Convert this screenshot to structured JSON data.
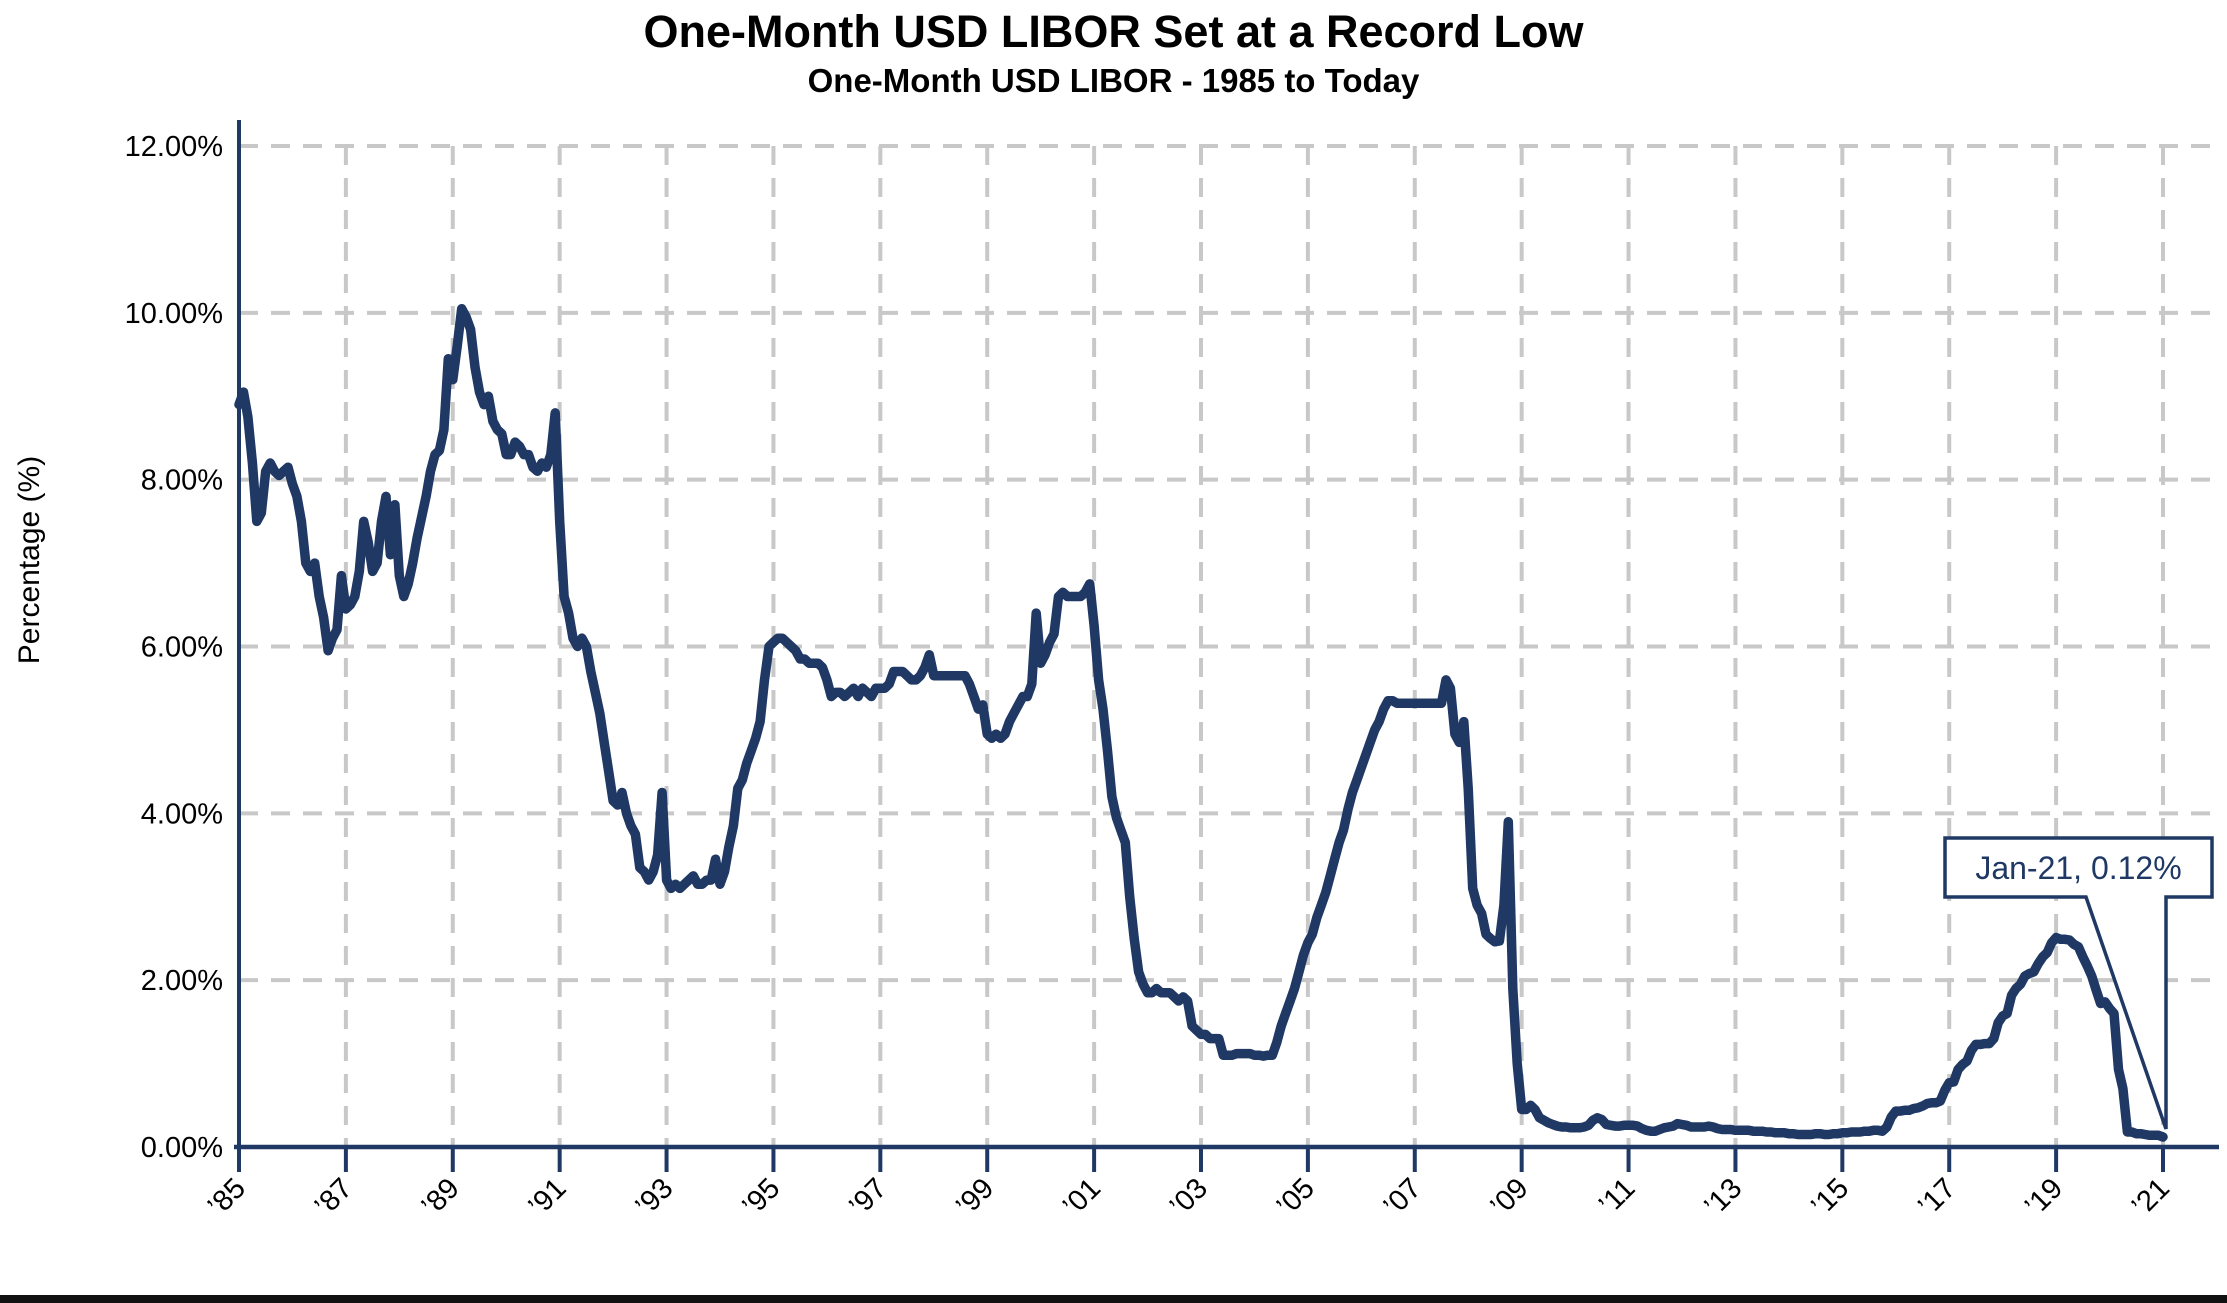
{
  "page": {
    "background": "#ffffff",
    "bottom_bar_color": "#111111"
  },
  "colors": {
    "line": "#1F3864",
    "axis": "#1F3864",
    "grid": "#C8C8C8",
    "text": "#000000",
    "annotation": "#1F3864"
  },
  "chart_data": {
    "type": "line",
    "title": "One-Month USD LIBOR Set at a Record Low",
    "subtitle": "One-Month USD LIBOR - 1985 to Today",
    "ylabel": "Percentage (%)",
    "xlabel": "",
    "ylim": [
      0,
      12
    ],
    "ytick_values": [
      0,
      2,
      4,
      6,
      8,
      10,
      12
    ],
    "ytick_labels": [
      "0.00%",
      "2.00%",
      "4.00%",
      "6.00%",
      "8.00%",
      "10.00%",
      "12.00%"
    ],
    "xtick_years": [
      1985,
      1987,
      1989,
      1991,
      1993,
      1995,
      1997,
      1999,
      2001,
      2003,
      2005,
      2007,
      2009,
      2011,
      2013,
      2015,
      2017,
      2019,
      2021
    ],
    "xtick_labels": [
      "’85",
      "’87",
      "’89",
      "’91",
      "’93",
      "’95",
      "’97",
      "’99",
      "’01",
      "’03",
      "’05",
      "’07",
      "’09",
      "’11",
      "’13",
      "’15",
      "’17",
      "’19",
      "’21"
    ],
    "grid": "dashed",
    "legend": null,
    "series": [
      {
        "name": "One-Month USD LIBOR",
        "start": "1985-01",
        "end": "2021-01",
        "frequency": "monthly",
        "unit": "percent",
        "values": [
          8.9,
          9.05,
          8.75,
          8.2,
          7.5,
          7.6,
          8.1,
          8.2,
          8.1,
          8.05,
          8.1,
          8.15,
          7.95,
          7.8,
          7.5,
          7.0,
          6.9,
          7.0,
          6.6,
          6.35,
          5.95,
          6.1,
          6.2,
          6.85,
          6.45,
          6.5,
          6.6,
          6.9,
          7.5,
          7.25,
          6.9,
          7.0,
          7.5,
          7.8,
          7.1,
          7.7,
          6.85,
          6.6,
          6.75,
          7.0,
          7.3,
          7.55,
          7.8,
          8.1,
          8.3,
          8.35,
          8.6,
          9.45,
          9.2,
          9.6,
          10.05,
          9.95,
          9.8,
          9.35,
          9.05,
          8.9,
          9.0,
          8.7,
          8.6,
          8.55,
          8.3,
          8.3,
          8.45,
          8.4,
          8.3,
          8.3,
          8.15,
          8.1,
          8.2,
          8.15,
          8.3,
          8.8,
          7.5,
          6.6,
          6.4,
          6.1,
          6.0,
          6.1,
          6.0,
          5.7,
          5.45,
          5.2,
          4.85,
          4.5,
          4.15,
          4.1,
          4.25,
          4.0,
          3.85,
          3.75,
          3.35,
          3.3,
          3.2,
          3.3,
          3.5,
          4.25,
          3.2,
          3.1,
          3.15,
          3.1,
          3.15,
          3.2,
          3.25,
          3.15,
          3.15,
          3.2,
          3.2,
          3.45,
          3.15,
          3.3,
          3.6,
          3.85,
          4.3,
          4.4,
          4.6,
          4.75,
          4.9,
          5.1,
          5.6,
          6.0,
          6.05,
          6.1,
          6.1,
          6.05,
          6.0,
          5.95,
          5.85,
          5.85,
          5.8,
          5.8,
          5.8,
          5.75,
          5.6,
          5.4,
          5.45,
          5.45,
          5.4,
          5.45,
          5.5,
          5.4,
          5.5,
          5.45,
          5.4,
          5.5,
          5.5,
          5.5,
          5.55,
          5.7,
          5.7,
          5.7,
          5.65,
          5.6,
          5.6,
          5.65,
          5.75,
          5.9,
          5.65,
          5.65,
          5.65,
          5.65,
          5.65,
          5.65,
          5.65,
          5.65,
          5.55,
          5.4,
          5.25,
          5.3,
          4.95,
          4.9,
          4.95,
          4.9,
          4.95,
          5.1,
          5.2,
          5.3,
          5.4,
          5.4,
          5.55,
          6.4,
          5.8,
          5.9,
          6.05,
          6.15,
          6.6,
          6.65,
          6.6,
          6.6,
          6.6,
          6.6,
          6.65,
          6.75,
          6.25,
          5.6,
          5.25,
          4.75,
          4.2,
          3.95,
          3.8,
          3.65,
          3.0,
          2.5,
          2.1,
          1.95,
          1.85,
          1.85,
          1.9,
          1.85,
          1.85,
          1.85,
          1.8,
          1.75,
          1.8,
          1.75,
          1.45,
          1.4,
          1.35,
          1.35,
          1.3,
          1.3,
          1.3,
          1.1,
          1.1,
          1.1,
          1.12,
          1.12,
          1.12,
          1.12,
          1.1,
          1.1,
          1.09,
          1.1,
          1.1,
          1.25,
          1.45,
          1.6,
          1.75,
          1.9,
          2.1,
          2.3,
          2.45,
          2.55,
          2.75,
          2.9,
          3.05,
          3.25,
          3.45,
          3.65,
          3.8,
          4.05,
          4.25,
          4.4,
          4.55,
          4.7,
          4.85,
          5.0,
          5.1,
          5.25,
          5.35,
          5.35,
          5.32,
          5.32,
          5.32,
          5.32,
          5.32,
          5.32,
          5.32,
          5.32,
          5.32,
          5.32,
          5.32,
          5.6,
          5.5,
          4.95,
          4.85,
          5.1,
          4.3,
          3.1,
          2.9,
          2.8,
          2.55,
          2.5,
          2.46,
          2.47,
          2.9,
          3.9,
          1.9,
          1.0,
          0.45,
          0.45,
          0.5,
          0.45,
          0.35,
          0.32,
          0.29,
          0.27,
          0.25,
          0.24,
          0.24,
          0.23,
          0.23,
          0.23,
          0.24,
          0.26,
          0.32,
          0.35,
          0.33,
          0.27,
          0.26,
          0.25,
          0.25,
          0.26,
          0.26,
          0.26,
          0.25,
          0.22,
          0.2,
          0.19,
          0.19,
          0.21,
          0.23,
          0.24,
          0.25,
          0.28,
          0.27,
          0.26,
          0.24,
          0.24,
          0.24,
          0.24,
          0.25,
          0.24,
          0.22,
          0.21,
          0.21,
          0.21,
          0.2,
          0.2,
          0.2,
          0.2,
          0.19,
          0.19,
          0.19,
          0.18,
          0.18,
          0.17,
          0.17,
          0.17,
          0.16,
          0.16,
          0.15,
          0.15,
          0.15,
          0.15,
          0.16,
          0.16,
          0.15,
          0.15,
          0.16,
          0.16,
          0.17,
          0.17,
          0.18,
          0.18,
          0.18,
          0.19,
          0.19,
          0.2,
          0.2,
          0.19,
          0.24,
          0.36,
          0.43,
          0.43,
          0.44,
          0.44,
          0.46,
          0.47,
          0.49,
          0.52,
          0.53,
          0.53,
          0.55,
          0.68,
          0.77,
          0.78,
          0.93,
          0.99,
          1.03,
          1.16,
          1.23,
          1.23,
          1.24,
          1.24,
          1.3,
          1.49,
          1.57,
          1.6,
          1.82,
          1.9,
          1.95,
          2.05,
          2.08,
          2.1,
          2.2,
          2.28,
          2.33,
          2.45,
          2.51,
          2.49,
          2.49,
          2.48,
          2.43,
          2.4,
          2.28,
          2.17,
          2.05,
          1.88,
          1.72,
          1.74,
          1.66,
          1.6,
          0.93,
          0.7,
          0.18,
          0.18,
          0.16,
          0.16,
          0.15,
          0.14,
          0.14,
          0.14,
          0.12
        ]
      }
    ],
    "annotation": {
      "label": "Jan-21, 0.12%",
      "x": "2021-01",
      "y": 0.12
    }
  }
}
